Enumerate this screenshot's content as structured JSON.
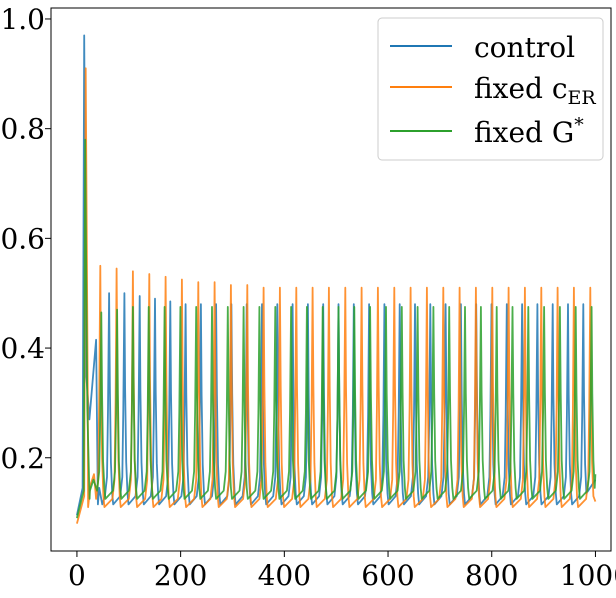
{
  "chart_data": {
    "type": "line",
    "title": "",
    "xlabel": "",
    "ylabel": "",
    "xlim": [
      -50,
      1030
    ],
    "ylim": [
      0.03,
      1.02
    ],
    "xticks": [
      0,
      200,
      400,
      600,
      800,
      1000
    ],
    "xtick_labels": [
      "0",
      "200",
      "400",
      "600",
      "800",
      "1000"
    ],
    "yticks": [
      0.2,
      0.4,
      0.6,
      0.8,
      1.0
    ],
    "ytick_labels": [
      "0.2",
      "0.4",
      "0.6",
      "0.8",
      "1.0"
    ],
    "grid": false,
    "legend_position": "top-right",
    "series": [
      {
        "name": "control",
        "legend_main": "control",
        "legend_sub": "",
        "legend_sup": "",
        "color": "#1f77b4",
        "x_start": 0,
        "x_end": 1000,
        "baseline": 0.115,
        "start_value": 0.095,
        "initial_peak": {
          "x": 14,
          "y": 0.97
        },
        "second_peak": {
          "x": 37,
          "y": 0.415
        },
        "trough_after_initial": 0.27,
        "first_regular_peak_x": 62,
        "period": 29.5,
        "peak_values": [
          0.5,
          0.5,
          0.495,
          0.49,
          0.485,
          0.48,
          0.48,
          0.48,
          0.48,
          0.48,
          0.48,
          0.48,
          0.48,
          0.48,
          0.48,
          0.48,
          0.48,
          0.48,
          0.48,
          0.48,
          0.48,
          0.48,
          0.48,
          0.48,
          0.48,
          0.48,
          0.48,
          0.48,
          0.48,
          0.48,
          0.48,
          0.48
        ],
        "end_value": 0.16
      },
      {
        "name": "fixed c_ER",
        "legend_main": "fixed c",
        "legend_sub": "ER",
        "legend_sup": "",
        "color": "#ff7f0e",
        "x_start": 0,
        "x_end": 1000,
        "baseline": 0.11,
        "start_value": 0.08,
        "initial_peak": {
          "x": 17,
          "y": 0.91
        },
        "second_peak": null,
        "trough_after_initial": 0.15,
        "first_regular_peak_x": 45,
        "period": 31.5,
        "peak_values": [
          0.55,
          0.545,
          0.54,
          0.535,
          0.53,
          0.525,
          0.52,
          0.52,
          0.515,
          0.515,
          0.51,
          0.51,
          0.51,
          0.51,
          0.51,
          0.51,
          0.51,
          0.51,
          0.51,
          0.51,
          0.51,
          0.51,
          0.51,
          0.51,
          0.51,
          0.51,
          0.51,
          0.51,
          0.51,
          0.51,
          0.51
        ],
        "end_value": 0.12
      },
      {
        "name": "fixed G*",
        "legend_main": "fixed G",
        "legend_sub": "",
        "legend_sup": "*",
        "color": "#2ca02c",
        "x_start": 0,
        "x_end": 1000,
        "baseline": 0.125,
        "start_value": 0.09,
        "initial_peak": {
          "x": 16,
          "y": 0.78
        },
        "second_peak": null,
        "trough_after_initial": 0.14,
        "first_regular_peak_x": 47,
        "period": 30.5,
        "peak_values": [
          0.465,
          0.47,
          0.475,
          0.475,
          0.475,
          0.475,
          0.475,
          0.475,
          0.475,
          0.475,
          0.475,
          0.475,
          0.475,
          0.475,
          0.475,
          0.475,
          0.475,
          0.475,
          0.475,
          0.475,
          0.475,
          0.475,
          0.475,
          0.475,
          0.475,
          0.475,
          0.475,
          0.475,
          0.475,
          0.475,
          0.475,
          0.475
        ],
        "end_value": 0.17
      }
    ]
  }
}
